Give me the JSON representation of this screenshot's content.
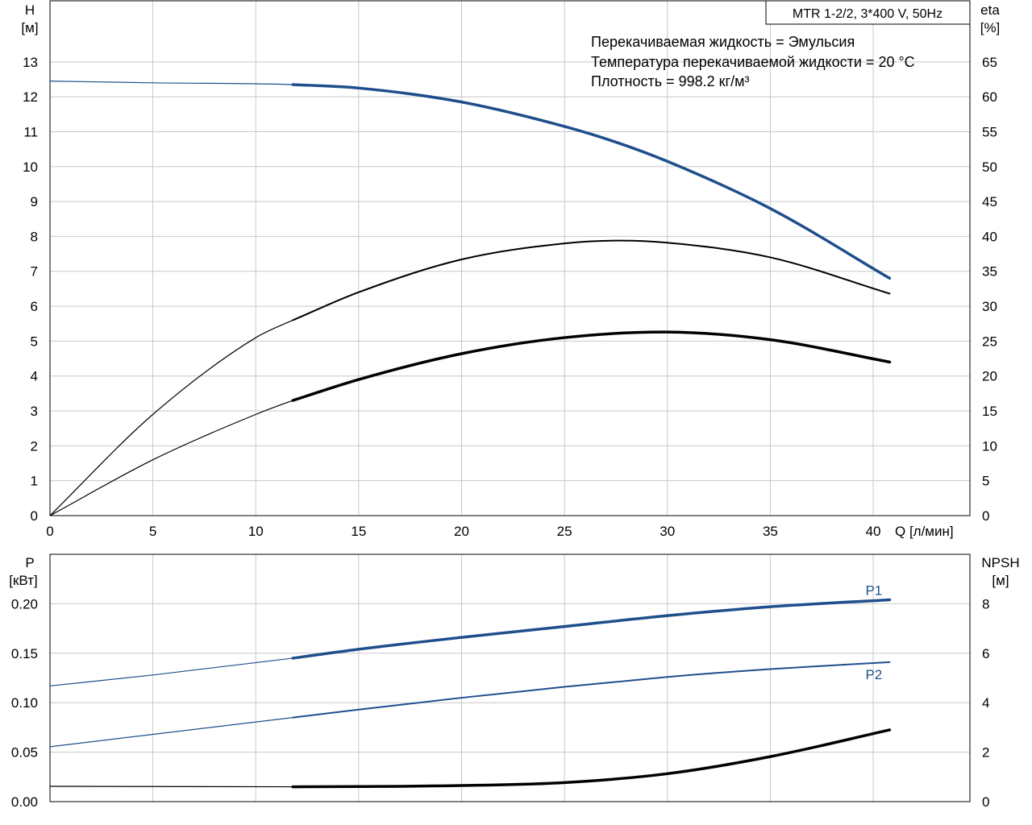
{
  "chart_data": [
    {
      "type": "line",
      "title": "MTR 1-2/2, 3*400 V, 50Hz",
      "info_lines": [
        "Перекачиваемая жидкость = Эмульсия",
        "Температура перекачиваемой жидкости = 20 °C",
        "Плотность = 998.2 кг/м³"
      ],
      "xlabel": "Q [л/мин]",
      "xlim": [
        0,
        44.7
      ],
      "xticks": [
        0,
        5,
        10,
        15,
        20,
        25,
        30,
        35,
        40
      ],
      "ylabel_left": [
        "H",
        "[м]"
      ],
      "ylim_left": [
        0,
        14.75
      ],
      "yticks_left": [
        0,
        1,
        2,
        3,
        4,
        5,
        6,
        7,
        8,
        9,
        10,
        11,
        12,
        13
      ],
      "ylabel_right": [
        "eta",
        "[%]"
      ],
      "ylim_right": [
        0,
        73.75
      ],
      "yticks_right": [
        0,
        5,
        10,
        15,
        20,
        25,
        30,
        35,
        40,
        45,
        50,
        55,
        60,
        65
      ],
      "grid": true,
      "operating_range_start": 11.8,
      "series": [
        {
          "axis": "left",
          "color": "#1f4e8c",
          "x": [
            0,
            5,
            11.8,
            15,
            20,
            25,
            27.5,
            30,
            35,
            40.8
          ],
          "y": [
            12.45,
            12.4,
            12.35,
            12.25,
            11.85,
            11.15,
            10.7,
            10.15,
            8.8,
            6.8
          ]
        },
        {
          "axis": "right",
          "color": "#000000",
          "x": [
            0,
            5,
            10,
            11.8,
            15,
            20,
            25,
            27.5,
            30,
            35,
            40.8
          ],
          "y": [
            0,
            14.5,
            25.5,
            28,
            32,
            36.7,
            39,
            39.4,
            39.1,
            37,
            31.8
          ]
        },
        {
          "axis": "right",
          "color": "#000000",
          "x": [
            0,
            5,
            10,
            11.8,
            15,
            20,
            25,
            30,
            35,
            40.8
          ],
          "y": [
            0,
            8,
            14.5,
            16.5,
            19.5,
            23.2,
            25.5,
            26.3,
            25.2,
            22
          ]
        }
      ]
    },
    {
      "type": "line",
      "xlim": [
        0,
        44.7
      ],
      "xticks": [
        0,
        5,
        10,
        15,
        20,
        25,
        30,
        35,
        40
      ],
      "ylabel_left": [
        "P",
        "[кВт]"
      ],
      "ylim_left": [
        0,
        0.25
      ],
      "yticks_left": [
        "0.00",
        "0.05",
        "0.10",
        "0.15",
        "0.20"
      ],
      "ylabel_right": [
        "NPSH",
        "[м]"
      ],
      "ylim_right": [
        0,
        10
      ],
      "yticks_right": [
        0,
        2,
        4,
        6,
        8
      ],
      "grid": true,
      "operating_range_start": 11.8,
      "series": [
        {
          "name": "P1",
          "axis": "left",
          "color": "#1f4e8c",
          "x": [
            0,
            5,
            11.8,
            15,
            20,
            25,
            30,
            35,
            40.8
          ],
          "y": [
            0.117,
            0.128,
            0.145,
            0.154,
            0.166,
            0.177,
            0.188,
            0.197,
            0.204
          ]
        },
        {
          "name": "P2",
          "axis": "left",
          "color": "#1f4e8c",
          "x": [
            0,
            5,
            11.8,
            15,
            20,
            25,
            30,
            35,
            40.8
          ],
          "y": [
            0.0555,
            0.068,
            0.085,
            0.093,
            0.105,
            0.116,
            0.126,
            0.134,
            0.141
          ]
        },
        {
          "axis": "right",
          "color": "#000000",
          "x": [
            0,
            5,
            11.8,
            15,
            20,
            25,
            30,
            35,
            40.8
          ],
          "y": [
            0.62,
            0.61,
            0.6,
            0.61,
            0.65,
            0.77,
            1.13,
            1.82,
            2.9
          ]
        }
      ]
    }
  ]
}
